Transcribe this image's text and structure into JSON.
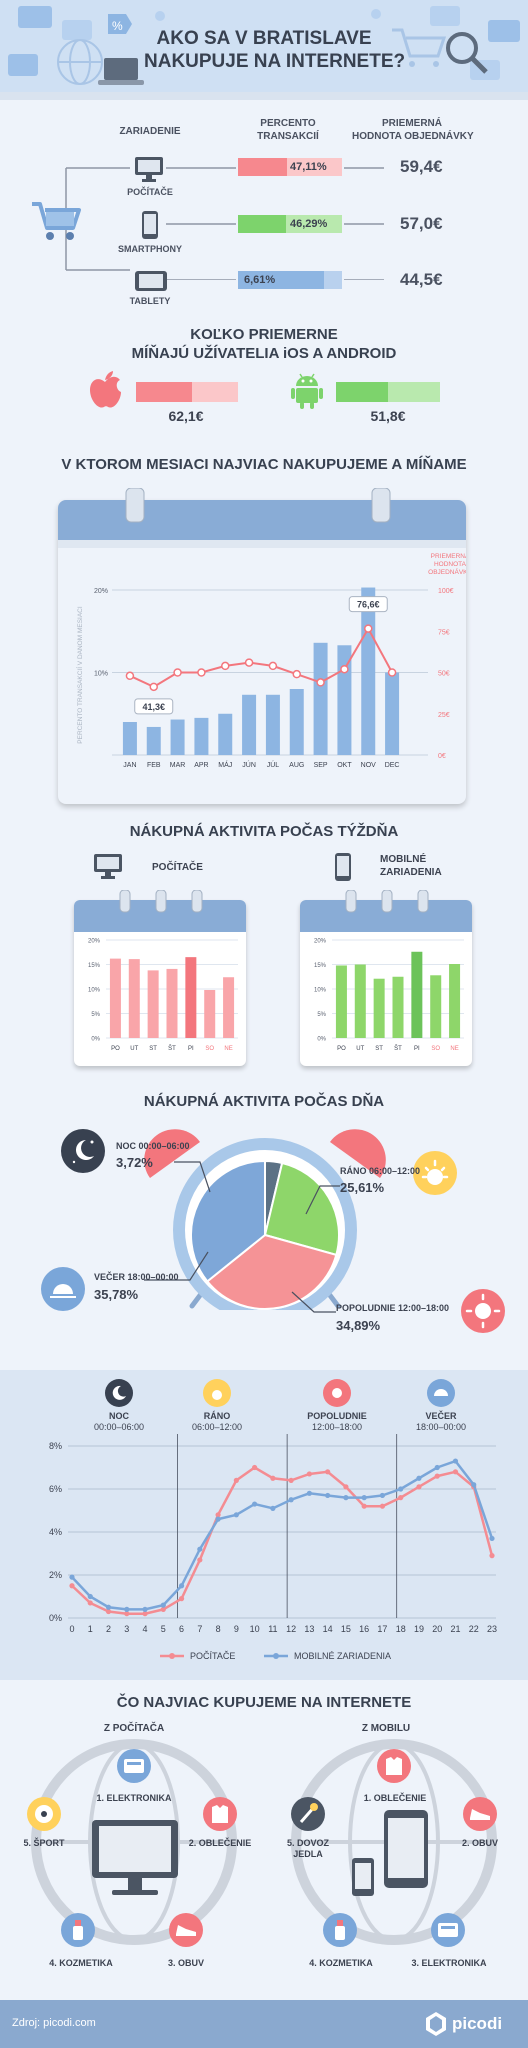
{
  "header": {
    "title_line1": "AKO SA V BRATISLAVE",
    "title_line2": "NAKUPUJE NA INTERNETE?"
  },
  "devices": {
    "col_device": "ZARIADENIE",
    "col_percent_1": "PERCENTO",
    "col_percent_2": "TRANSAKCIÍ",
    "col_avg_1": "PRIEMERNÁ",
    "col_avg_2": "HODNOTA OBJEDNÁVKY",
    "rows": [
      {
        "name": "POČÍTAČE",
        "percent_label": "47,11%",
        "percent": 47.11,
        "avg": "59,4€",
        "color": "#f6888e",
        "track": "#fbc7c9"
      },
      {
        "name": "SMARTPHONY",
        "percent_label": "46,29%",
        "percent": 46.29,
        "avg": "57,0€",
        "color": "#7dd36c",
        "track": "#b9e9ae"
      },
      {
        "name": "TABLETY",
        "percent_label": "6,61%",
        "percent": 6.61,
        "avg": "44,5€",
        "color": "#8db5e2",
        "track": "#b9d1ee"
      }
    ]
  },
  "ios_android": {
    "title_line1": "KOĽKO PRIEMERNE",
    "title_line2": "MÍŇAJÚ UŽÍVATELIA iOS A ANDROID",
    "ios_value": "62,1€",
    "android_value": "51,8€",
    "ios_fill": 0.55,
    "android_fill": 0.5
  },
  "monthly": {
    "title": "V KTOROM MESIACI NAJVIAC NAKUPUJEME A MÍŇAME",
    "chart_data": {
      "type": "bar",
      "categories": [
        "JAN",
        "FEB",
        "MAR",
        "APR",
        "MÁJ",
        "JÚN",
        "JÚL",
        "AUG",
        "SEP",
        "OKT",
        "NOV",
        "DEC"
      ],
      "series": [
        {
          "name": "PERCENTO TRANSAKCIÍ V DANOM MESIACI",
          "values": [
            4.0,
            3.4,
            4.3,
            4.5,
            5.0,
            7.3,
            7.3,
            8.0,
            13.6,
            13.3,
            20.3,
            10.0
          ]
        },
        {
          "name": "PRIEMERNÁ HODNOTA OBJEDNÁVKY",
          "values": [
            48,
            41.3,
            50,
            50,
            54,
            56,
            54,
            49,
            44,
            52,
            76.6,
            50
          ]
        }
      ],
      "ylabel": "PERCENTO TRANSAKCIÍ V DANOM MESIACI",
      "y_ticks": [
        "20%",
        "10%"
      ],
      "ylim": [
        0,
        20
      ],
      "y2label_line1": "PRIEMERNÁ",
      "y2label_line2": "HODNOTA",
      "y2label_line3": "OBJEDNÁVKY",
      "y2_ticks": [
        "100€",
        "75€",
        "50€",
        "25€",
        "0€"
      ],
      "y2lim": [
        0,
        100
      ],
      "annotations": [
        "41,3€",
        "76,6€"
      ]
    }
  },
  "weekly": {
    "title": "NÁKUPNÁ AKTIVITA POČAS TÝŽDŇA",
    "pc_label": "POČÍTAČE",
    "mobile_label_1": "MOBILNÉ",
    "mobile_label_2": "ZARIADENIA",
    "chart_data": [
      {
        "type": "bar",
        "categories": [
          "PO",
          "UT",
          "ST",
          "ŠT",
          "PI",
          "SO",
          "NE"
        ],
        "values": [
          16.2,
          16.1,
          13.8,
          14.1,
          16.5,
          9.8,
          12.4
        ],
        "y_ticks": [
          "20%",
          "15%",
          "10%",
          "5%",
          "0%"
        ],
        "ylim": [
          0,
          20
        ]
      },
      {
        "type": "bar",
        "categories": [
          "PO",
          "UT",
          "ST",
          "ŠT",
          "PI",
          "SO",
          "NE"
        ],
        "values": [
          14.8,
          15.0,
          12.1,
          12.5,
          17.6,
          12.8,
          15.1
        ],
        "y_ticks": [
          "20%",
          "15%",
          "10%",
          "5%",
          "0%"
        ],
        "ylim": [
          0,
          20
        ]
      }
    ]
  },
  "daily": {
    "title": "NÁKUPNÁ AKTIVITA POČAS DŇA",
    "chart_data": {
      "type": "pie",
      "slices": [
        {
          "label_1": "NOC 00:00–06:00",
          "value_label": "3,72%",
          "value": 3.72,
          "color": "#5b7185"
        },
        {
          "label_1": "RÁNO 06:00–12:00",
          "value_label": "25,61%",
          "value": 25.61,
          "color": "#8ed66a"
        },
        {
          "label_1": "POPOLUDNIE 12:00–18:00",
          "value_label": "34,89%",
          "value": 34.89,
          "color": "#f59396"
        },
        {
          "label_1": "VEČER 18:00–00:00",
          "value_label": "35,78%",
          "value": 35.78,
          "color": "#7ea7d8"
        }
      ]
    }
  },
  "hourly": {
    "periods": [
      {
        "name": "NOC",
        "time": "00:00–06:00"
      },
      {
        "name": "RÁNO",
        "time": "06:00–12:00"
      },
      {
        "name": "POPOLUDNIE",
        "time": "12:00–18:00"
      },
      {
        "name": "VEČER",
        "time": "18:00–00:00"
      }
    ],
    "chart_data": {
      "type": "line",
      "x": [
        0,
        1,
        2,
        3,
        4,
        5,
        6,
        7,
        8,
        9,
        10,
        11,
        12,
        13,
        14,
        15,
        16,
        17,
        18,
        19,
        20,
        21,
        22,
        23
      ],
      "y_ticks": [
        "8%",
        "6%",
        "4%",
        "2%",
        "0%"
      ],
      "ylim": [
        0,
        8
      ],
      "series": [
        {
          "name": "POČÍTAČE",
          "color": "#f48c92",
          "values": [
            1.5,
            0.7,
            0.3,
            0.2,
            0.2,
            0.4,
            0.9,
            2.7,
            4.8,
            6.4,
            7.0,
            6.5,
            6.4,
            6.7,
            6.8,
            6.1,
            5.2,
            5.2,
            5.6,
            6.1,
            6.6,
            6.8,
            6.1,
            2.9
          ]
        },
        {
          "name": "MOBILNÉ ZARIADENIA",
          "color": "#7aa6d9",
          "values": [
            1.9,
            1.0,
            0.5,
            0.4,
            0.4,
            0.6,
            1.5,
            3.2,
            4.6,
            4.8,
            5.3,
            5.1,
            5.5,
            5.8,
            5.7,
            5.6,
            5.6,
            5.7,
            6.0,
            6.5,
            7.0,
            7.3,
            6.2,
            3.7
          ]
        }
      ]
    }
  },
  "products": {
    "title": "ČO NAJVIAC KUPUJEME NA INTERNETE",
    "pc_title": "Z POČÍTAČA",
    "mobile_title": "Z MOBILU",
    "pc_items": [
      "1. ELEKTRONIKA",
      "2. OBLEČENIE",
      "3. OBUV",
      "4. KOZMETIKA",
      "5. ŠPORT"
    ],
    "mobile_items": [
      "1. OBLEČENIE",
      "2. OBUV",
      "3. ELEKTRONIKA",
      "4. KOZMETIKA",
      "5. DOVOZ",
      "JEDLA"
    ]
  },
  "footer": {
    "source": "Zdroj: picodi.com",
    "brand": "picodi"
  }
}
